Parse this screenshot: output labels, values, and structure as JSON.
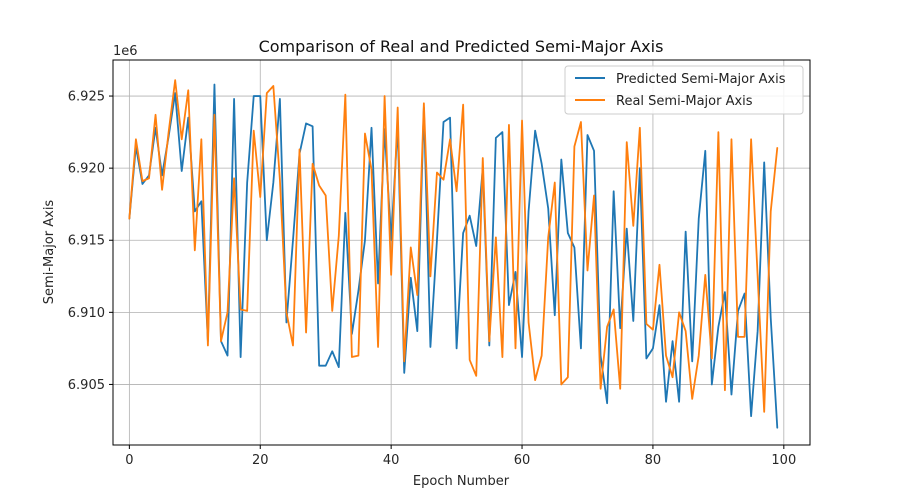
{
  "chart_data": {
    "type": "line",
    "title": "Comparison of Real and Predicted Semi-Major Axis",
    "xlabel": "Epoch Number",
    "ylabel": "Semi-Major Axis",
    "y_offset_label": "1e6",
    "xlim": [
      -2.5,
      104
    ],
    "ylim": [
      6.9008,
      6.9275
    ],
    "x_ticks": [
      0,
      20,
      40,
      60,
      80,
      100
    ],
    "x_tick_labels": [
      "0",
      "20",
      "40",
      "60",
      "80",
      "100"
    ],
    "y_ticks": [
      6.905,
      6.91,
      6.915,
      6.92,
      6.925
    ],
    "y_tick_labels": [
      "6.905",
      "6.910",
      "6.915",
      "6.920",
      "6.925"
    ],
    "grid": true,
    "legend_position": "top-right",
    "x": [
      0,
      1,
      2,
      3,
      4,
      5,
      6,
      7,
      8,
      9,
      10,
      11,
      12,
      13,
      14,
      15,
      16,
      17,
      18,
      19,
      20,
      21,
      22,
      23,
      24,
      25,
      26,
      27,
      28,
      29,
      30,
      31,
      32,
      33,
      34,
      35,
      36,
      37,
      38,
      39,
      40,
      41,
      42,
      43,
      44,
      45,
      46,
      47,
      48,
      49,
      50,
      51,
      52,
      53,
      54,
      55,
      56,
      57,
      58,
      59,
      60,
      61,
      62,
      63,
      64,
      65,
      66,
      67,
      68,
      69,
      70,
      71,
      72,
      73,
      74,
      75,
      76,
      77,
      78,
      79,
      80,
      81,
      82,
      83,
      84,
      85,
      86,
      87,
      88,
      89,
      90,
      91,
      92,
      93,
      94,
      95,
      96,
      97,
      98,
      99
    ],
    "series": [
      {
        "name": "Predicted Semi-Major Axis",
        "color": "#1f77b4",
        "values": [
          6.9165,
          6.9215,
          6.9189,
          6.9195,
          6.9228,
          6.9195,
          6.9222,
          6.9252,
          6.9198,
          6.9235,
          6.917,
          6.9177,
          6.908,
          6.9258,
          6.908,
          6.907,
          6.9248,
          6.9069,
          6.919,
          6.925,
          6.925,
          6.915,
          6.919,
          6.9248,
          6.9093,
          6.915,
          6.921,
          6.9231,
          6.9229,
          6.9063,
          6.9063,
          6.9073,
          6.9062,
          6.9169,
          6.9085,
          6.9115,
          6.915,
          6.9228,
          6.912,
          6.9227,
          6.915,
          6.923,
          6.9058,
          6.9124,
          6.9087,
          6.9242,
          6.9076,
          6.915,
          6.9232,
          6.9235,
          6.9075,
          6.9155,
          6.9167,
          6.9146,
          6.92,
          6.9077,
          6.9221,
          6.9225,
          6.9105,
          6.9128,
          6.9069,
          6.917,
          6.9226,
          6.9203,
          6.9172,
          6.9098,
          6.9206,
          6.9155,
          6.9145,
          6.9075,
          6.9223,
          6.9212,
          6.907,
          6.9037,
          6.9184,
          6.9089,
          6.9158,
          6.9094,
          6.92,
          6.9068,
          6.9075,
          6.9105,
          6.9038,
          6.908,
          6.9038,
          6.9156,
          6.9066,
          6.9165,
          6.9212,
          6.905,
          6.909,
          6.9114,
          6.9043,
          6.9101,
          6.9113,
          6.9028,
          6.9087,
          6.9204,
          6.9096,
          6.902
        ]
      },
      {
        "name": "Real Semi-Major Axis",
        "color": "#ff7f0e",
        "values": [
          6.9165,
          6.922,
          6.9191,
          6.9193,
          6.9237,
          6.9185,
          6.9225,
          6.9261,
          6.922,
          6.9254,
          6.9143,
          6.922,
          6.9077,
          6.9237,
          6.908,
          6.91,
          6.9193,
          6.9102,
          6.9101,
          6.9226,
          6.918,
          6.9252,
          6.9257,
          6.9192,
          6.91,
          6.9077,
          6.9213,
          6.9086,
          6.9203,
          6.9188,
          6.9181,
          6.9101,
          6.9153,
          6.9251,
          6.9069,
          6.907,
          6.9224,
          6.9199,
          6.9076,
          6.925,
          6.9126,
          6.9242,
          6.9066,
          6.9145,
          6.9112,
          6.9245,
          6.9125,
          6.9197,
          6.9192,
          6.922,
          6.9184,
          6.9244,
          6.9067,
          6.9056,
          6.9207,
          6.908,
          6.9152,
          6.9069,
          6.923,
          6.9075,
          6.9233,
          6.9093,
          6.9053,
          6.907,
          6.9152,
          6.919,
          6.905,
          6.9055,
          6.9215,
          6.9232,
          6.9129,
          6.9181,
          6.9047,
          6.909,
          6.9102,
          6.9047,
          6.9218,
          6.916,
          6.9228,
          6.9092,
          6.9088,
          6.9133,
          6.907,
          6.9055,
          6.91,
          6.9087,
          6.904,
          6.907,
          6.9126,
          6.9068,
          6.9225,
          6.9046,
          6.922,
          6.9083,
          6.9083,
          6.922,
          6.9125,
          6.9031,
          6.917,
          6.9214
        ]
      }
    ]
  }
}
